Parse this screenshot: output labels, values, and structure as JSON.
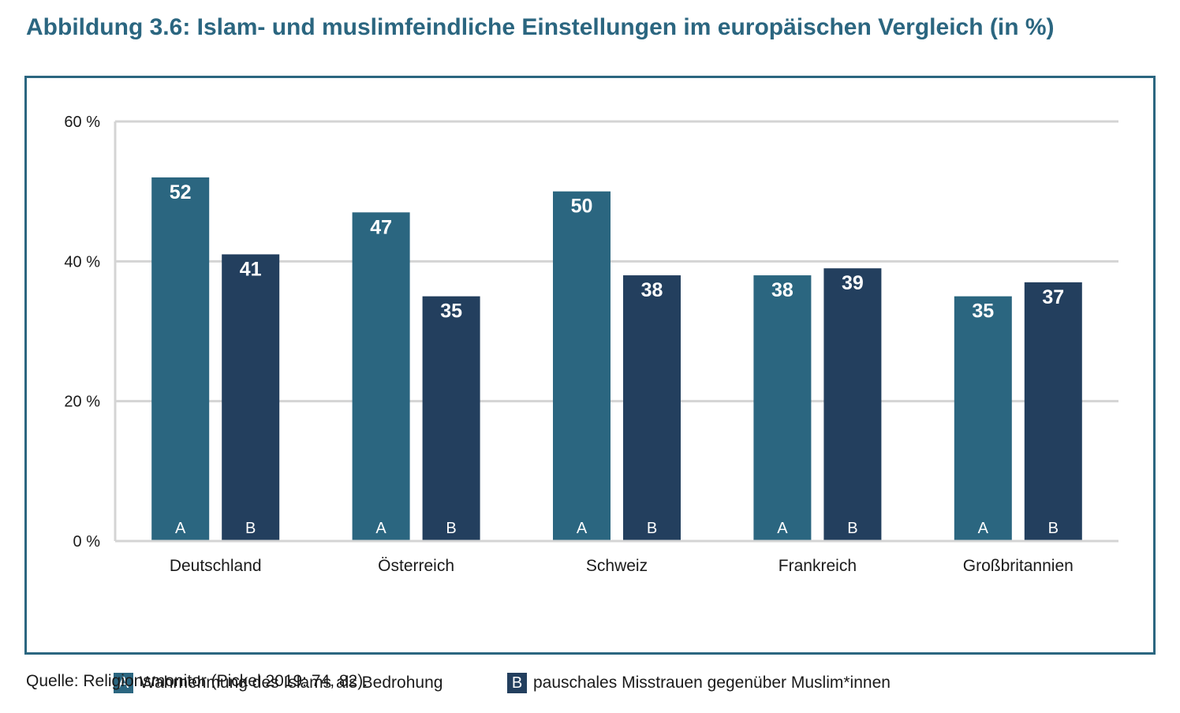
{
  "title": "Abbildung 3.6: Islam- und muslimfeindliche Einstellungen im europäischen Vergleich (in %)",
  "source": "Quelle: Religionsmonitor (Pickel 2019: 74, 82).",
  "colors": {
    "frame": "#2b6680",
    "series_a": "#2b6680",
    "series_b": "#233f5e",
    "grid": "#d4d4d4",
    "title": "#2b6680"
  },
  "legend": [
    {
      "key": "A",
      "label": "Wahrnehmung des Islams als Bedrohung"
    },
    {
      "key": "B",
      "label": "pauschales Misstrauen gegenüber Muslim*innen"
    }
  ],
  "chart_data": {
    "type": "bar",
    "categories": [
      "Deutschland",
      "Österreich",
      "Schweiz",
      "Frankreich",
      "Großbritannien"
    ],
    "series": [
      {
        "name": "Wahrnehmung des Islams als Bedrohung",
        "key": "A",
        "values": [
          52,
          47,
          50,
          38,
          35
        ]
      },
      {
        "name": "pauschales Misstrauen gegenüber Muslim*innen",
        "key": "B",
        "values": [
          41,
          35,
          38,
          39,
          37
        ]
      }
    ],
    "yticks": [
      "0 %",
      "20 %",
      "40 %",
      "60 %"
    ],
    "ytick_values": [
      0,
      20,
      40,
      60
    ],
    "ylim": [
      0,
      60
    ],
    "grid": true,
    "legend_position": "bottom"
  }
}
